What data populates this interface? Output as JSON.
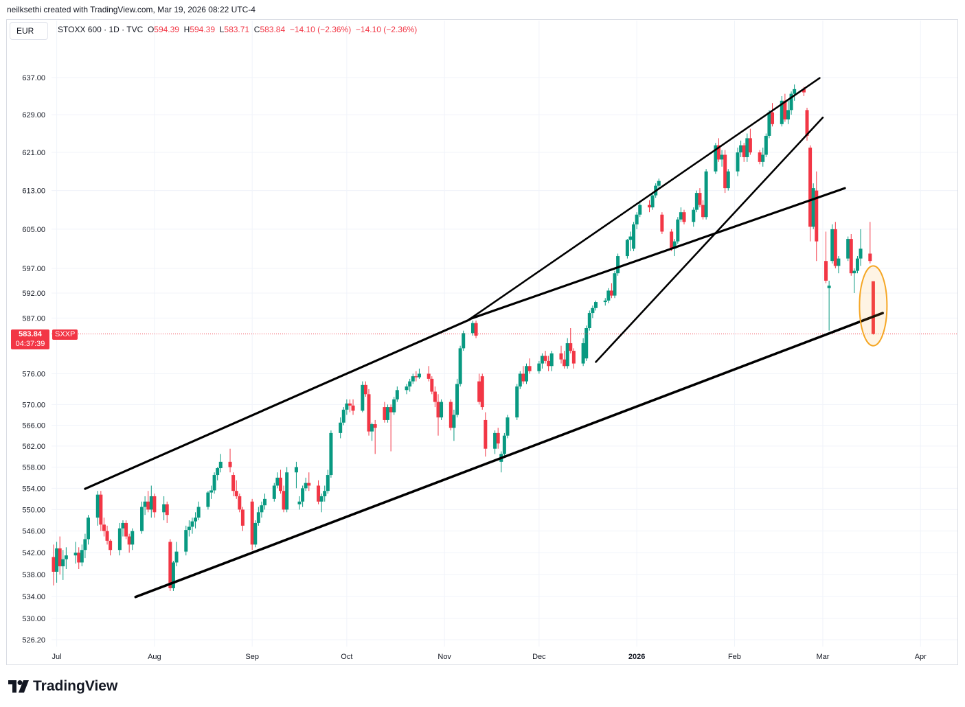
{
  "header": {
    "text": "neilksethi created with TradingView.com, Mar 19, 2026 08:22 UTC-4"
  },
  "currency": "EUR",
  "legend": {
    "symbol": "STOXX 600 · 1D · TVC",
    "o_label": "O",
    "o_value": "594.39",
    "h_label": "H",
    "h_value": "594.39",
    "l_label": "L",
    "l_value": "583.71",
    "c_label": "C",
    "c_value": "583.84",
    "change": "−14.10 (−2.36%)",
    "change2": "−14.10 (−2.36%)"
  },
  "price_tag": {
    "price": "583.84",
    "countdown": "04:37:39",
    "symbol": "SXXP"
  },
  "logo": {
    "text": "TradingView"
  },
  "colors": {
    "up": "#089981",
    "down": "#f23645",
    "trendline": "#000000",
    "highlight": "#f5a623"
  },
  "chart_data": {
    "type": "candlestick",
    "y_ticks": [
      "637.00",
      "629.00",
      "621.00",
      "613.00",
      "605.00",
      "597.00",
      "592.00",
      "587.00",
      "576.00",
      "570.00",
      "566.00",
      "562.00",
      "558.00",
      "554.00",
      "550.00",
      "546.00",
      "542.00",
      "538.00",
      "534.00",
      "530.00",
      "526.20"
    ],
    "y_tick_values": [
      637,
      629,
      621,
      613,
      605,
      597,
      592,
      587,
      576,
      570,
      566,
      562,
      558,
      554,
      550,
      546,
      542,
      538,
      534,
      530,
      526.2
    ],
    "x_ticks": [
      "Jul",
      "Aug",
      "Sep",
      "Oct",
      "Nov",
      "Dec",
      "2026",
      "Feb",
      "Mar",
      "Apr"
    ],
    "last_price": 583.84,
    "ohlc_start": "2025-06-30",
    "ohlc": [
      [
        541.2,
        543.5,
        536.0,
        538.5
      ],
      [
        538.5,
        544.0,
        536.5,
        542.8
      ],
      [
        542.8,
        545.0,
        538.0,
        539.5
      ],
      [
        539.5,
        542.5,
        537.0,
        540.8
      ],
      [
        540.8,
        543.0,
        539.0,
        541.5
      ],
      [
        541.5,
        544.0,
        540.0,
        542.0
      ],
      [
        542.0,
        543.0,
        539.0,
        540.2
      ],
      [
        540.2,
        543.5,
        539.5,
        542.5
      ],
      [
        542.5,
        545.5,
        541.0,
        544.5
      ],
      [
        544.5,
        549.0,
        543.5,
        548.5
      ],
      [
        548.5,
        553.5,
        547.0,
        552.8
      ],
      [
        552.8,
        553.5,
        546.0,
        547.2
      ],
      [
        547.2,
        548.5,
        545.0,
        546.0
      ],
      [
        546.0,
        547.0,
        543.5,
        544.2
      ],
      [
        544.2,
        544.5,
        541.5,
        542.5
      ],
      [
        542.5,
        547.5,
        541.5,
        546.5
      ],
      [
        546.5,
        548.0,
        545.0,
        547.5
      ],
      [
        547.5,
        548.0,
        544.5,
        545.0
      ],
      [
        545.0,
        545.5,
        542.0,
        543.5
      ],
      [
        543.5,
        546.5,
        542.5,
        546.0
      ],
      [
        546.0,
        551.5,
        545.5,
        550.5
      ],
      [
        550.5,
        552.5,
        549.0,
        551.5
      ],
      [
        551.5,
        553.5,
        549.5,
        550.0
      ],
      [
        550.0,
        554.5,
        548.5,
        552.5
      ],
      [
        552.5,
        553.0,
        548.5,
        549.5
      ],
      [
        549.5,
        552.5,
        548.0,
        551.0
      ],
      [
        551.0,
        551.5,
        547.5,
        549.0
      ],
      [
        544.0,
        544.5,
        535.0,
        535.5
      ],
      [
        535.5,
        540.5,
        535.0,
        540.2
      ],
      [
        540.2,
        544.0,
        539.5,
        542.2
      ],
      [
        542.2,
        547.0,
        541.5,
        546.2
      ],
      [
        546.2,
        548.0,
        545.0,
        546.8
      ],
      [
        546.8,
        548.5,
        545.5,
        547.8
      ],
      [
        547.8,
        549.5,
        546.5,
        548.5
      ],
      [
        548.5,
        551.5,
        548.0,
        550.5
      ],
      [
        550.5,
        553.5,
        550.0,
        553.2
      ],
      [
        553.2,
        554.5,
        552.0,
        553.6
      ],
      [
        553.6,
        557.0,
        553.0,
        556.5
      ],
      [
        556.5,
        558.0,
        555.5,
        557.8
      ],
      [
        557.8,
        560.5,
        557.0,
        559.0
      ],
      [
        559.0,
        561.5,
        557.0,
        558.0
      ],
      [
        556.5,
        557.0,
        552.5,
        553.5
      ],
      [
        553.5,
        555.5,
        552.0,
        552.5
      ],
      [
        552.5,
        553.0,
        549.5,
        550.0
      ],
      [
        550.0,
        550.5,
        546.0,
        547.0
      ],
      [
        551.5,
        552.0,
        542.5,
        543.5
      ],
      [
        543.5,
        548.0,
        543.0,
        547.5
      ],
      [
        547.5,
        550.5,
        547.0,
        549.5
      ],
      [
        549.5,
        551.5,
        548.5,
        550.8
      ],
      [
        550.8,
        553.0,
        550.0,
        552.0
      ],
      [
        552.0,
        555.0,
        551.5,
        554.5
      ],
      [
        554.5,
        557.0,
        554.0,
        556.0
      ],
      [
        556.0,
        557.5,
        553.0,
        553.5
      ],
      [
        553.5,
        554.5,
        549.5,
        550.0
      ],
      [
        550.0,
        558.0,
        549.5,
        557.0
      ],
      [
        557.0,
        559.0,
        554.0,
        558.0
      ],
      [
        551.0,
        552.5,
        550.0,
        551.5
      ],
      [
        551.5,
        554.5,
        550.5,
        554.0
      ],
      [
        554.0,
        556.0,
        553.5,
        555.0
      ],
      [
        555.0,
        557.0,
        553.5,
        554.5
      ],
      [
        554.5,
        555.5,
        551.0,
        551.5
      ],
      [
        551.5,
        553.0,
        549.5,
        552.5
      ],
      [
        552.5,
        554.5,
        551.5,
        553.5
      ],
      [
        553.5,
        557.5,
        553.0,
        556.5
      ],
      [
        556.5,
        565.0,
        556.0,
        564.5
      ],
      [
        564.5,
        567.5,
        563.5,
        566.5
      ],
      [
        566.5,
        569.5,
        566.0,
        569.0
      ],
      [
        569.0,
        571.0,
        568.0,
        570.2
      ],
      [
        570.2,
        571.0,
        568.5,
        569.8
      ],
      [
        569.8,
        571.0,
        568.0,
        568.8
      ],
      [
        568.8,
        574.5,
        568.5,
        573.8
      ],
      [
        573.8,
        574.5,
        571.5,
        572.0
      ],
      [
        572.0,
        573.0,
        564.0,
        564.8
      ],
      [
        564.8,
        566.5,
        563.0,
        566.2
      ],
      [
        566.2,
        567.0,
        560.5,
        565.5
      ],
      [
        569.5,
        570.5,
        566.5,
        567.0
      ],
      [
        567.0,
        570.0,
        566.5,
        569.5
      ],
      [
        569.5,
        570.0,
        561.0,
        568.5
      ],
      [
        568.5,
        571.5,
        568.0,
        571.0
      ],
      [
        571.0,
        573.5,
        570.5,
        572.8
      ],
      [
        572.8,
        574.0,
        572.0,
        573.5
      ],
      [
        573.5,
        575.0,
        572.5,
        574.5
      ],
      [
        574.5,
        576.0,
        574.0,
        575.5
      ],
      [
        575.5,
        576.5,
        574.5,
        575.3
      ],
      [
        575.3,
        577.0,
        575.0,
        576.0
      ],
      [
        576.0,
        577.5,
        574.5,
        575.0
      ],
      [
        575.0,
        575.5,
        572.0,
        572.5
      ],
      [
        572.5,
        573.5,
        569.5,
        570.5
      ],
      [
        570.5,
        572.0,
        564.0,
        567.5
      ],
      [
        567.5,
        571.0,
        567.0,
        570.5
      ],
      [
        570.5,
        571.0,
        565.0,
        565.5
      ],
      [
        565.5,
        569.0,
        563.0,
        568.0
      ],
      [
        568.0,
        575.0,
        567.5,
        574.0
      ],
      [
        574.0,
        581.5,
        573.5,
        581.0
      ],
      [
        581.0,
        584.5,
        580.5,
        584.0
      ],
      [
        584.0,
        586.5,
        583.5,
        586.0
      ],
      [
        586.0,
        586.5,
        583.0,
        583.5
      ],
      [
        574.5,
        576.0,
        570.0,
        570.5
      ],
      [
        575.5,
        576.0,
        569.0,
        569.5
      ],
      [
        567.0,
        568.5,
        560.0,
        561.5
      ],
      [
        561.5,
        565.0,
        560.5,
        564.5
      ],
      [
        564.5,
        565.5,
        561.5,
        562.5
      ],
      [
        559.0,
        561.0,
        557.0,
        560.5
      ],
      [
        560.5,
        564.5,
        560.0,
        564.0
      ],
      [
        564.0,
        568.0,
        563.5,
        567.5
      ],
      [
        567.5,
        574.0,
        567.0,
        573.5
      ],
      [
        573.5,
        576.5,
        573.0,
        576.0
      ],
      [
        576.0,
        577.5,
        574.0,
        574.5
      ],
      [
        574.5,
        578.0,
        574.0,
        577.5
      ],
      [
        577.5,
        579.0,
        576.0,
        576.5
      ],
      [
        576.5,
        578.5,
        576.0,
        578.0
      ],
      [
        578.0,
        580.0,
        577.0,
        579.5
      ],
      [
        579.5,
        580.5,
        578.0,
        578.5
      ],
      [
        578.5,
        579.5,
        576.5,
        577.5
      ],
      [
        577.5,
        580.5,
        576.5,
        580.0
      ],
      [
        580.0,
        581.5,
        578.0,
        578.8
      ],
      [
        578.8,
        580.5,
        577.0,
        577.5
      ],
      [
        577.5,
        583.0,
        577.0,
        582.0
      ],
      [
        582.0,
        585.0,
        580.0,
        580.5
      ],
      [
        580.5,
        581.0,
        577.0,
        578.0
      ],
      [
        578.0,
        583.0,
        577.5,
        582.0
      ],
      [
        579.0,
        585.5,
        578.5,
        585.0
      ],
      [
        585.0,
        588.5,
        584.5,
        588.0
      ],
      [
        588.0,
        589.5,
        587.0,
        589.0
      ],
      [
        589.0,
        590.5,
        588.5,
        590.2
      ],
      [
        590.2,
        591.0,
        589.5,
        590.5
      ],
      [
        590.5,
        593.0,
        590.0,
        592.5
      ],
      [
        592.5,
        594.0,
        591.0,
        591.5
      ],
      [
        591.5,
        596.5,
        591.0,
        596.0
      ],
      [
        596.0,
        600.0,
        595.5,
        599.5
      ],
      [
        599.5,
        603.0,
        599.0,
        602.8
      ],
      [
        602.8,
        604.5,
        600.5,
        603.5
      ],
      [
        601.0,
        606.5,
        600.5,
        606.0
      ],
      [
        606.0,
        608.5,
        605.0,
        608.0
      ],
      [
        608.0,
        610.5,
        607.5,
        610.0
      ],
      [
        610.0,
        611.0,
        608.5,
        609.5
      ],
      [
        609.5,
        612.5,
        609.0,
        612.0
      ],
      [
        612.0,
        614.5,
        611.5,
        614.0
      ],
      [
        614.0,
        615.5,
        613.5,
        615.0
      ],
      [
        608.0,
        608.5,
        604.0,
        604.5
      ],
      [
        604.5,
        605.0,
        600.5,
        601.0
      ],
      [
        601.0,
        603.0,
        599.5,
        602.5
      ],
      [
        602.5,
        607.5,
        602.0,
        607.0
      ],
      [
        607.0,
        609.5,
        606.5,
        608.5
      ],
      [
        608.5,
        609.0,
        606.0,
        606.5
      ],
      [
        606.5,
        609.5,
        605.5,
        609.0
      ],
      [
        609.0,
        613.0,
        608.5,
        612.5
      ],
      [
        612.5,
        613.5,
        609.5,
        610.0
      ],
      [
        610.0,
        611.0,
        607.0,
        607.5
      ],
      [
        607.5,
        617.5,
        607.0,
        617.0
      ],
      [
        617.0,
        623.0,
        616.5,
        622.5
      ],
      [
        622.5,
        624.0,
        619.0,
        619.5
      ],
      [
        619.5,
        621.5,
        618.0,
        620.5
      ],
      [
        620.5,
        621.5,
        612.5,
        613.5
      ],
      [
        613.5,
        617.5,
        613.0,
        617.0
      ],
      [
        617.0,
        622.0,
        616.0,
        621.0
      ],
      [
        621.0,
        623.5,
        620.0,
        622.5
      ],
      [
        622.5,
        623.0,
        619.0,
        620.0
      ],
      [
        620.0,
        625.0,
        619.0,
        624.0
      ],
      [
        624.0,
        626.0,
        620.5,
        621.0
      ],
      [
        621.0,
        621.5,
        618.5,
        619.0
      ],
      [
        619.0,
        622.0,
        618.0,
        620.5
      ],
      [
        620.5,
        625.0,
        620.0,
        624.5
      ],
      [
        624.5,
        630.0,
        624.0,
        629.5
      ],
      [
        629.5,
        631.5,
        626.5,
        627.0
      ],
      [
        627.0,
        633.0,
        626.5,
        632.0
      ],
      [
        632.0,
        633.5,
        627.5,
        628.0
      ],
      [
        628.0,
        632.0,
        627.0,
        630.0
      ],
      [
        630.0,
        634.0,
        629.0,
        633.5
      ],
      [
        633.5,
        635.5,
        632.0,
        634.5
      ],
      [
        634.5,
        635.0,
        633.0,
        633.8
      ],
      [
        630.0,
        630.5,
        623.5,
        624.5
      ],
      [
        622.0,
        622.5,
        602.5,
        605.5
      ],
      [
        605.5,
        614.5,
        605.0,
        613.5
      ],
      [
        613.0,
        617.0,
        598.5,
        602.5
      ],
      [
        598.5,
        604.5,
        594.0,
        594.5
      ],
      [
        593.0,
        594.5,
        584.5,
        593.5
      ],
      [
        598.5,
        606.0,
        598.0,
        605.0
      ],
      [
        605.0,
        606.5,
        597.0,
        597.5
      ],
      [
        597.5,
        599.5,
        596.0,
        599.0
      ],
      [
        599.0,
        603.5,
        598.5,
        603.0
      ],
      [
        603.0,
        604.0,
        595.5,
        596.0
      ],
      [
        596.0,
        597.0,
        592.0,
        596.5
      ],
      [
        596.5,
        599.5,
        596.0,
        599.0
      ],
      [
        599.0,
        605.0,
        597.5,
        601.0
      ],
      [
        600.0,
        606.5,
        598.0,
        598.5
      ],
      [
        594.39,
        594.39,
        583.71,
        583.84
      ]
    ]
  }
}
